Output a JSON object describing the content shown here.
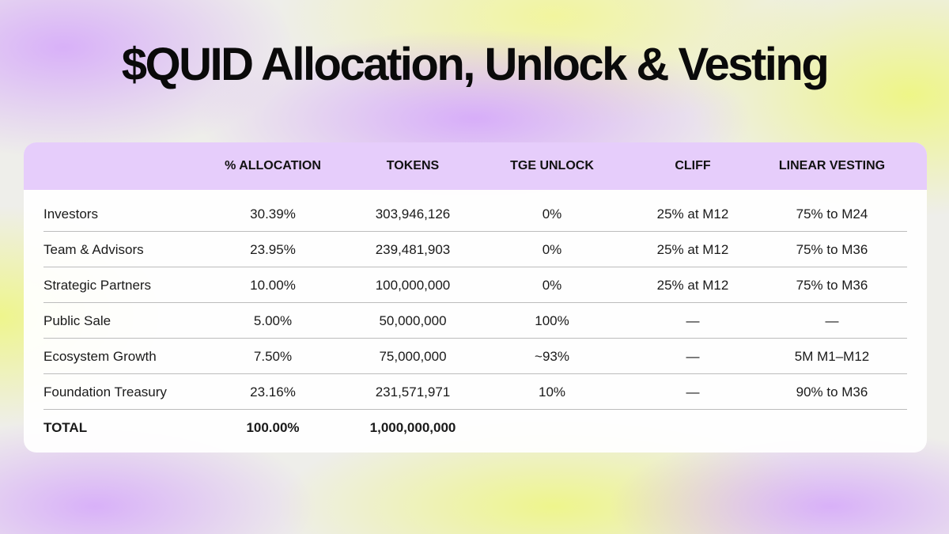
{
  "title": "$QUID Allocation, Unlock & Vesting",
  "table": {
    "headers": [
      "% ALLOCATION",
      "TOKENS",
      "TGE UNLOCK",
      "CLIFF",
      "LINEAR VESTING"
    ],
    "rows": [
      [
        "Investors",
        "30.39%",
        "303,946,126",
        "0%",
        "25% at M12",
        "75% to M24"
      ],
      [
        "Team & Advisors",
        "23.95%",
        "239,481,903",
        "0%",
        "25% at M12",
        "75% to M36"
      ],
      [
        "Strategic Partners",
        "10.00%",
        "100,000,000",
        "0%",
        "25% at M12",
        "75% to M36"
      ],
      [
        "Public Sale",
        "5.00%",
        "50,000,000",
        "100%",
        "—",
        "—"
      ],
      [
        "Ecosystem Growth",
        "7.50%",
        "75,000,000",
        "~93%",
        "—",
        "5M M1–M12"
      ],
      [
        "Foundation Treasury",
        "23.16%",
        "231,571,971",
        "10%",
        "—",
        "90% to M36"
      ]
    ],
    "total": [
      "TOTAL",
      "100.00%",
      "1,000,000,000"
    ]
  }
}
